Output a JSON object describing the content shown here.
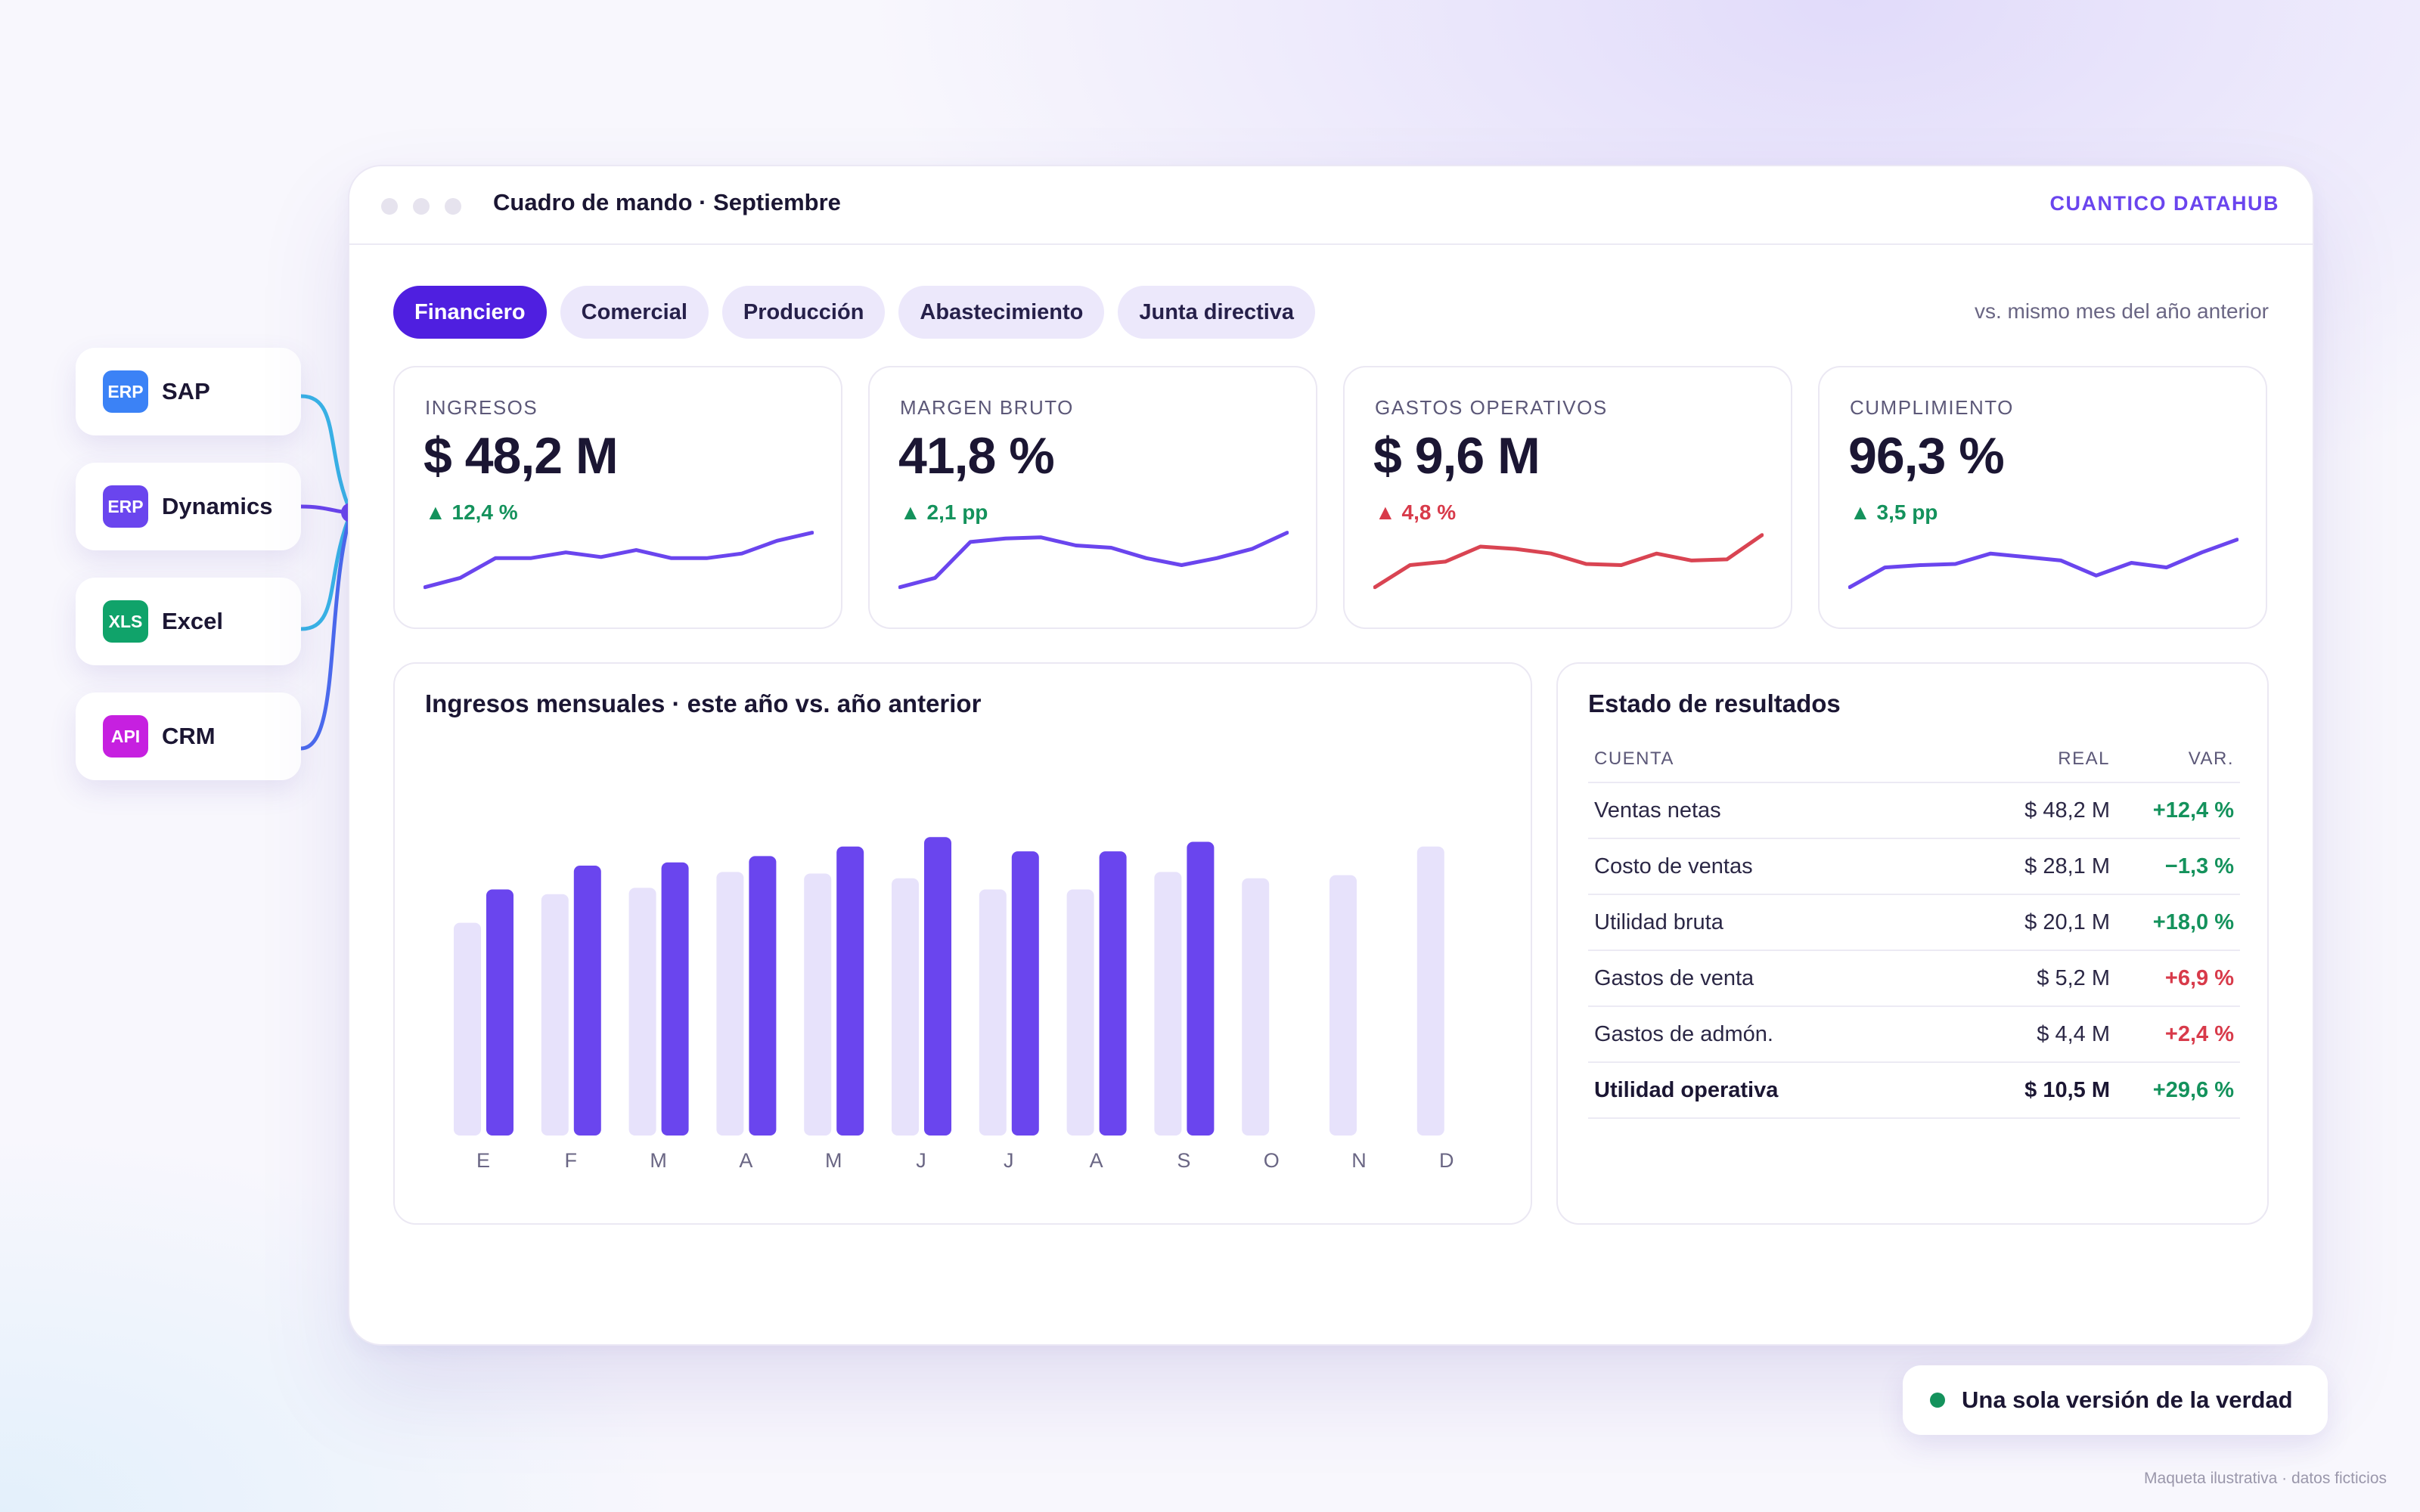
{
  "window": {
    "title": "Cuadro de mando · Septiembre",
    "brand": "CUANTICO DATAHUB"
  },
  "tabs": [
    {
      "label": "Financiero",
      "active": true
    },
    {
      "label": "Comercial",
      "active": false
    },
    {
      "label": "Producción",
      "active": false
    },
    {
      "label": "Abastecimiento",
      "active": false
    },
    {
      "label": "Junta directiva",
      "active": false
    }
  ],
  "compare_note": "vs. mismo mes del año anterior",
  "kpis": [
    {
      "label": "INGRESOS",
      "value": "$ 48,2 M",
      "delta": "▲ 12,4 %",
      "trend": "up",
      "color": "#6a45ee",
      "sparkline": [
        1.0,
        1.8,
        3.5,
        3.5,
        4.0,
        3.6,
        4.2,
        3.5,
        3.5,
        3.9,
        5.0,
        5.7
      ]
    },
    {
      "label": "MARGEN BRUTO",
      "value": "41,8 %",
      "delta": "▲ 2,1 pp",
      "trend": "up",
      "color": "#6a45ee",
      "sparkline": [
        1.0,
        1.8,
        4.9,
        5.2,
        5.3,
        4.6,
        4.4,
        3.5,
        2.9,
        3.5,
        4.3,
        5.7
      ]
    },
    {
      "label": "GASTOS OPERATIVOS",
      "value": "$ 9,6 M",
      "delta": "▲ 4,8 %",
      "trend": "down",
      "color": "#d94452",
      "sparkline": [
        1.0,
        2.9,
        3.2,
        4.5,
        4.3,
        3.9,
        3.0,
        2.9,
        3.9,
        3.3,
        3.4,
        5.5
      ]
    },
    {
      "label": "CUMPLIMIENTO",
      "value": "96,3 %",
      "delta": "▲ 3,5 pp",
      "trend": "up",
      "color": "#6a45ee",
      "sparkline": [
        1.0,
        2.7,
        2.9,
        3.0,
        3.9,
        3.6,
        3.3,
        2.0,
        3.1,
        2.7,
        4.0,
        5.1
      ]
    }
  ],
  "revenue_panel": {
    "title": "Ingresos mensuales · este año vs. año anterior"
  },
  "chart_data": {
    "type": "bar",
    "categories": [
      "E",
      "F",
      "M",
      "A",
      "M",
      "J",
      "J",
      "A",
      "S",
      "O",
      "N",
      "D"
    ],
    "series": [
      {
        "values": [
          134,
          152,
          156,
          166,
          165,
          162,
          155,
          155,
          166,
          162,
          164,
          182
        ],
        "color": "#e7e2fb"
      },
      {
        "values": [
          155,
          170,
          172,
          176,
          182,
          188,
          179,
          179,
          185,
          null,
          null,
          null
        ],
        "color": "#6a45ee"
      }
    ],
    "ylim": [
      0,
      200
    ]
  },
  "statement": {
    "title": "Estado de resultados",
    "headers": [
      "CUENTA",
      "REAL",
      "VAR."
    ],
    "rows": [
      {
        "account": "Ventas netas",
        "real": "$ 48,2 M",
        "var": "+12,4 %",
        "positive": true,
        "bold": false
      },
      {
        "account": "Costo de ventas",
        "real": "$ 28,1 M",
        "var": "−1,3 %",
        "positive": true,
        "bold": false
      },
      {
        "account": "Utilidad bruta",
        "real": "$ 20,1 M",
        "var": "+18,0 %",
        "positive": true,
        "bold": false
      },
      {
        "account": "Gastos de venta",
        "real": "$ 5,2 M",
        "var": "+6,9 %",
        "positive": false,
        "bold": false
      },
      {
        "account": "Gastos de admón.",
        "real": "$ 4,4 M",
        "var": "+2,4 %",
        "positive": false,
        "bold": false
      },
      {
        "account": "Utilidad operativa",
        "real": "$ 10,5 M",
        "var": "+29,6 %",
        "positive": true,
        "bold": true
      }
    ]
  },
  "sources": [
    {
      "badge": "ERP",
      "name": "SAP",
      "color": "#3b82f6"
    },
    {
      "badge": "ERP",
      "name": "Dynamics",
      "color": "#6a45ee"
    },
    {
      "badge": "XLS",
      "name": "Excel",
      "color": "#10a36a"
    },
    {
      "badge": "API",
      "name": "CRM",
      "color": "#c620e0"
    }
  ],
  "truth_badge": "Una sola versión de la verdad",
  "footnote": "Maqueta ilustrativa · datos ficticios",
  "colors": {
    "accent": "#6a45ee",
    "tab_active": "#4f1fe0",
    "positive": "#14925c",
    "negative": "#d83a4a"
  }
}
